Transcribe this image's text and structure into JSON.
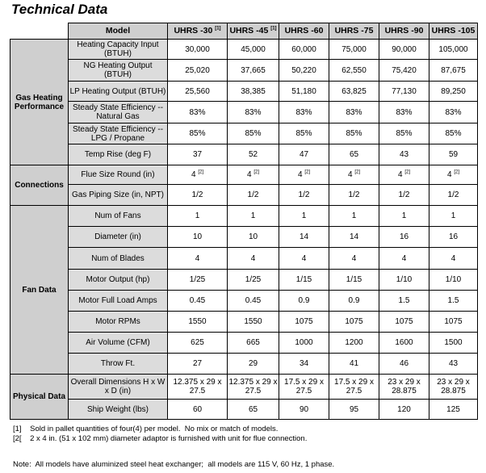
{
  "title": "Technical Data",
  "header": {
    "model_label": "Model",
    "models": [
      {
        "name": "UHRS -30",
        "note": "[1]"
      },
      {
        "name": "UHRS -45",
        "note": "[1]"
      },
      {
        "name": "UHRS -60",
        "note": ""
      },
      {
        "name": "UHRS -75",
        "note": ""
      },
      {
        "name": "UHRS -90",
        "note": ""
      },
      {
        "name": "UHRS -105",
        "note": ""
      }
    ]
  },
  "groups": [
    {
      "name": "Gas Heating Performance",
      "rows": [
        {
          "param": "Heating Capacity Input (BTUH)",
          "values": [
            "30,000",
            "45,000",
            "60,000",
            "75,000",
            "90,000",
            "105,000"
          ]
        },
        {
          "param": "NG Heating Output (BTUH)",
          "values": [
            "25,020",
            "37,665",
            "50,220",
            "62,550",
            "75,420",
            "87,675"
          ]
        },
        {
          "param": "LP Heating Output (BTUH)",
          "values": [
            "25,560",
            "38,385",
            "51,180",
            "63,825",
            "77,130",
            "89,250"
          ]
        },
        {
          "param": "Steady State Efficiency -- Natural Gas",
          "values": [
            "83%",
            "83%",
            "83%",
            "83%",
            "83%",
            "83%"
          ]
        },
        {
          "param": "Steady State Efficiency -- LPG / Propane",
          "values": [
            "85%",
            "85%",
            "85%",
            "85%",
            "85%",
            "85%"
          ]
        },
        {
          "param": "Temp Rise (deg F)",
          "values": [
            "37",
            "52",
            "47",
            "65",
            "43",
            "59"
          ]
        }
      ]
    },
    {
      "name": "Connections",
      "rows": [
        {
          "param": "Flue Size Round (in)",
          "values": [
            "4",
            "4",
            "4",
            "4",
            "4",
            "4"
          ],
          "note": "[2]"
        },
        {
          "param": "Gas Piping Size (in, NPT)",
          "values": [
            "1/2",
            "1/2",
            "1/2",
            "1/2",
            "1/2",
            "1/2"
          ]
        }
      ]
    },
    {
      "name": "Fan Data",
      "rows": [
        {
          "param": "Num of Fans",
          "values": [
            "1",
            "1",
            "1",
            "1",
            "1",
            "1"
          ]
        },
        {
          "param": "Diameter (in)",
          "values": [
            "10",
            "10",
            "14",
            "14",
            "16",
            "16"
          ]
        },
        {
          "param": "Num of Blades",
          "values": [
            "4",
            "4",
            "4",
            "4",
            "4",
            "4"
          ]
        },
        {
          "param": "Motor Output (hp)",
          "values": [
            "1/25",
            "1/25",
            "1/15",
            "1/15",
            "1/10",
            "1/10"
          ]
        },
        {
          "param": "Motor Full Load Amps",
          "values": [
            "0.45",
            "0.45",
            "0.9",
            "0.9",
            "1.5",
            "1.5"
          ]
        },
        {
          "param": "Motor RPMs",
          "values": [
            "1550",
            "1550",
            "1075",
            "1075",
            "1075",
            "1075"
          ]
        },
        {
          "param": "Air Volume (CFM)",
          "values": [
            "625",
            "665",
            "1000",
            "1200",
            "1600",
            "1500"
          ]
        },
        {
          "param": "Throw Ft.",
          "values": [
            "27",
            "29",
            "34",
            "41",
            "46",
            "43"
          ]
        }
      ]
    },
    {
      "name": "Physical Data",
      "rows": [
        {
          "param": "Overall Dimensions H x W x D (in)",
          "values": [
            "12.375 x 29 x 27.5",
            "12.375 x 29 x 27.5",
            "17.5 x 29 x 27.5",
            "17.5 x 29 x 27.5",
            "23 x 29 x 28.875",
            "23 x 29 x 28.875"
          ]
        },
        {
          "param": "Ship Weight (lbs)",
          "values": [
            "60",
            "65",
            "90",
            "95",
            "120",
            "125"
          ]
        }
      ]
    }
  ],
  "footnotes": [
    "[1]    Sold in pallet quantities of four(4) per model.  No mix or match of models.",
    "[2[    2 x 4 in. (51 x 102 mm) diameter adaptor is furnished with unit for flue connection."
  ],
  "note": "Note:  All models have aluminized steel heat exchanger;  all models are 115 V, 60 Hz, 1 phase."
}
